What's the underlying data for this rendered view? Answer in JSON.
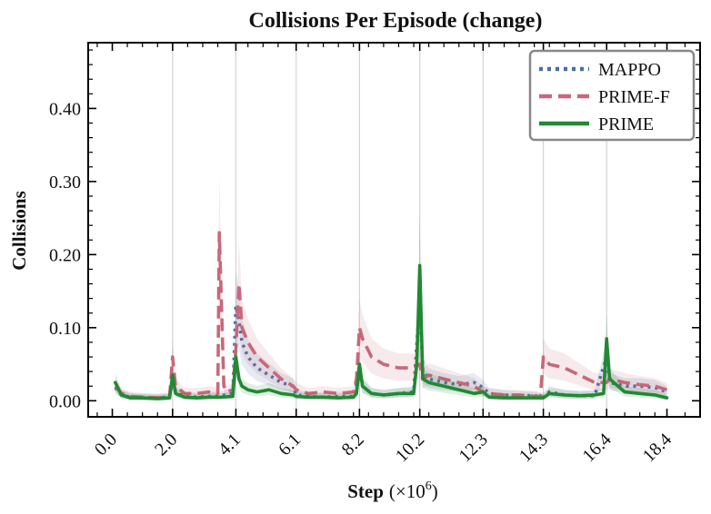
{
  "chart_data": {
    "type": "line",
    "title": "Collisions Per Episode (change)",
    "xlabel": "Step",
    "xlabel_unit": "(×10",
    "xlabel_exp": "6",
    "xlabel_close": ")",
    "ylabel": "Collisions",
    "xlim": [
      -0.8,
      19.5
    ],
    "ylim": [
      -0.022,
      0.49
    ],
    "x_ticks": [
      0.0,
      2.0,
      4.1,
      6.1,
      8.2,
      10.2,
      12.3,
      14.3,
      16.4,
      18.4
    ],
    "x_tick_labels": [
      "0.0",
      "2.0",
      "4.1",
      "6.1",
      "8.2",
      "10.2",
      "12.3",
      "14.3",
      "16.4",
      "18.4"
    ],
    "y_ticks": [
      0.0,
      0.1,
      0.2,
      0.3,
      0.4
    ],
    "y_tick_labels": [
      "0.00",
      "0.10",
      "0.20",
      "0.30",
      "0.40"
    ],
    "vlines": [
      2.0,
      4.1,
      6.1,
      8.2,
      10.2,
      12.3,
      14.3,
      16.4
    ],
    "grid": "vertical",
    "legend_position": "top-right",
    "series": [
      {
        "name": "MAPPO",
        "color": "#4a6fa5",
        "style": "dotted",
        "x": [
          0.1,
          0.3,
          0.6,
          1.0,
          1.5,
          1.9,
          2.0,
          2.1,
          2.4,
          2.8,
          3.2,
          3.6,
          4.0,
          4.1,
          4.2,
          4.3,
          4.5,
          4.8,
          5.2,
          5.6,
          6.0,
          6.1,
          6.5,
          7.0,
          7.5,
          8.0,
          8.2,
          8.3,
          8.6,
          9.0,
          9.5,
          10.0,
          10.2,
          10.3,
          10.5,
          11.0,
          11.5,
          12.0,
          12.3,
          12.5,
          13.0,
          13.5,
          14.0,
          14.3,
          14.5,
          15.0,
          15.5,
          16.0,
          16.4,
          16.5,
          17.0,
          17.5,
          18.0,
          18.4
        ],
        "y": [
          0.018,
          0.008,
          0.005,
          0.004,
          0.004,
          0.005,
          0.03,
          0.012,
          0.006,
          0.005,
          0.006,
          0.007,
          0.01,
          0.13,
          0.11,
          0.08,
          0.06,
          0.045,
          0.035,
          0.025,
          0.02,
          0.008,
          0.006,
          0.005,
          0.006,
          0.006,
          0.04,
          0.02,
          0.01,
          0.008,
          0.01,
          0.012,
          0.14,
          0.04,
          0.03,
          0.025,
          0.022,
          0.025,
          0.018,
          0.01,
          0.008,
          0.007,
          0.007,
          0.005,
          0.012,
          0.008,
          0.007,
          0.007,
          0.06,
          0.025,
          0.02,
          0.02,
          0.018,
          0.012
        ]
      },
      {
        "name": "PRIME-F",
        "color": "#c9677a",
        "style": "dashed",
        "x": [
          0.1,
          0.3,
          0.6,
          1.0,
          1.5,
          1.9,
          2.0,
          2.1,
          2.4,
          2.8,
          3.2,
          3.5,
          3.55,
          3.6,
          3.7,
          3.8,
          4.0,
          4.1,
          4.2,
          4.3,
          4.5,
          4.8,
          5.2,
          5.6,
          6.0,
          6.1,
          6.5,
          7.0,
          7.5,
          8.0,
          8.1,
          8.2,
          8.3,
          8.6,
          9.0,
          9.5,
          10.0,
          10.2,
          10.3,
          10.5,
          11.0,
          11.5,
          12.0,
          12.3,
          12.5,
          13.0,
          13.5,
          14.0,
          14.2,
          14.3,
          14.5,
          15.0,
          15.5,
          16.0,
          16.4,
          16.5,
          17.0,
          17.5,
          18.0,
          18.4
        ],
        "y": [
          0.02,
          0.01,
          0.006,
          0.005,
          0.004,
          0.005,
          0.06,
          0.02,
          0.01,
          0.01,
          0.012,
          0.01,
          0.23,
          0.16,
          0.02,
          0.012,
          0.015,
          0.07,
          0.16,
          0.1,
          0.08,
          0.06,
          0.045,
          0.03,
          0.02,
          0.015,
          0.01,
          0.012,
          0.01,
          0.012,
          0.03,
          0.1,
          0.085,
          0.06,
          0.05,
          0.045,
          0.045,
          0.05,
          0.03,
          0.035,
          0.03,
          0.025,
          0.02,
          0.012,
          0.01,
          0.008,
          0.008,
          0.006,
          0.005,
          0.06,
          0.05,
          0.045,
          0.035,
          0.025,
          0.025,
          0.03,
          0.025,
          0.022,
          0.02,
          0.015
        ]
      },
      {
        "name": "PRIME",
        "color": "#228833",
        "style": "solid",
        "x": [
          0.1,
          0.3,
          0.6,
          1.0,
          1.5,
          1.9,
          2.0,
          2.1,
          2.4,
          2.8,
          3.2,
          3.6,
          4.0,
          4.1,
          4.2,
          4.3,
          4.5,
          4.8,
          5.2,
          5.6,
          6.0,
          6.1,
          6.5,
          7.0,
          7.5,
          8.0,
          8.1,
          8.2,
          8.3,
          8.6,
          9.0,
          9.5,
          10.0,
          10.1,
          10.2,
          10.3,
          10.5,
          11.0,
          11.5,
          12.0,
          12.3,
          12.5,
          13.0,
          13.5,
          14.0,
          14.3,
          14.5,
          15.0,
          15.5,
          16.0,
          16.3,
          16.4,
          16.5,
          17.0,
          17.5,
          18.0,
          18.4
        ],
        "y": [
          0.025,
          0.008,
          0.004,
          0.004,
          0.003,
          0.004,
          0.035,
          0.01,
          0.005,
          0.004,
          0.005,
          0.005,
          0.006,
          0.06,
          0.03,
          0.02,
          0.015,
          0.012,
          0.015,
          0.01,
          0.008,
          0.006,
          0.005,
          0.005,
          0.004,
          0.005,
          0.01,
          0.05,
          0.02,
          0.01,
          0.008,
          0.01,
          0.01,
          0.05,
          0.185,
          0.03,
          0.025,
          0.02,
          0.015,
          0.01,
          0.012,
          0.005,
          0.004,
          0.004,
          0.004,
          0.004,
          0.01,
          0.008,
          0.007,
          0.008,
          0.01,
          0.085,
          0.03,
          0.012,
          0.01,
          0.008,
          0.004
        ]
      }
    ]
  }
}
